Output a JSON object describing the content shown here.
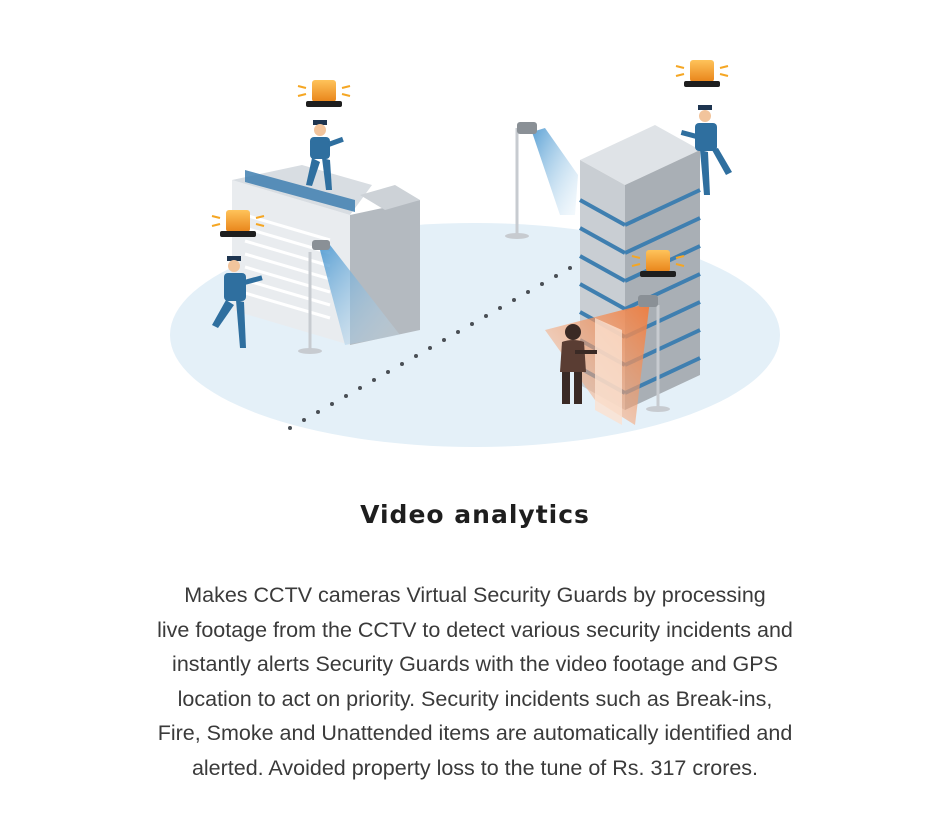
{
  "illustration": {
    "scene": "security-scene-illustration",
    "colors": {
      "ground": "#e3eff7",
      "building_light": "#e8ecef",
      "building_mid": "#c9ced3",
      "building_dark": "#a9afb5",
      "stripe_blue": "#3f7fb0",
      "camera_beam": "#8ec3e6",
      "alert_beam": "#f08a4b",
      "siren": "#f5a623",
      "guard_uniform": "#2f6f9f",
      "intruder": "#5a3d33"
    }
  },
  "section": {
    "title": "Video analytics",
    "description_lines": [
      "Makes CCTV cameras Virtual Security Guards by processing",
      "live footage from the CCTV to detect various security incidents and",
      "instantly alerts Security Guards with the video footage and GPS",
      "location to act on priority. Security incidents such as Break-ins,",
      "Fire, Smoke and Unattended items are automatically identified and",
      "alerted. Avoided property loss to the tune of Rs. 317 crores."
    ]
  }
}
